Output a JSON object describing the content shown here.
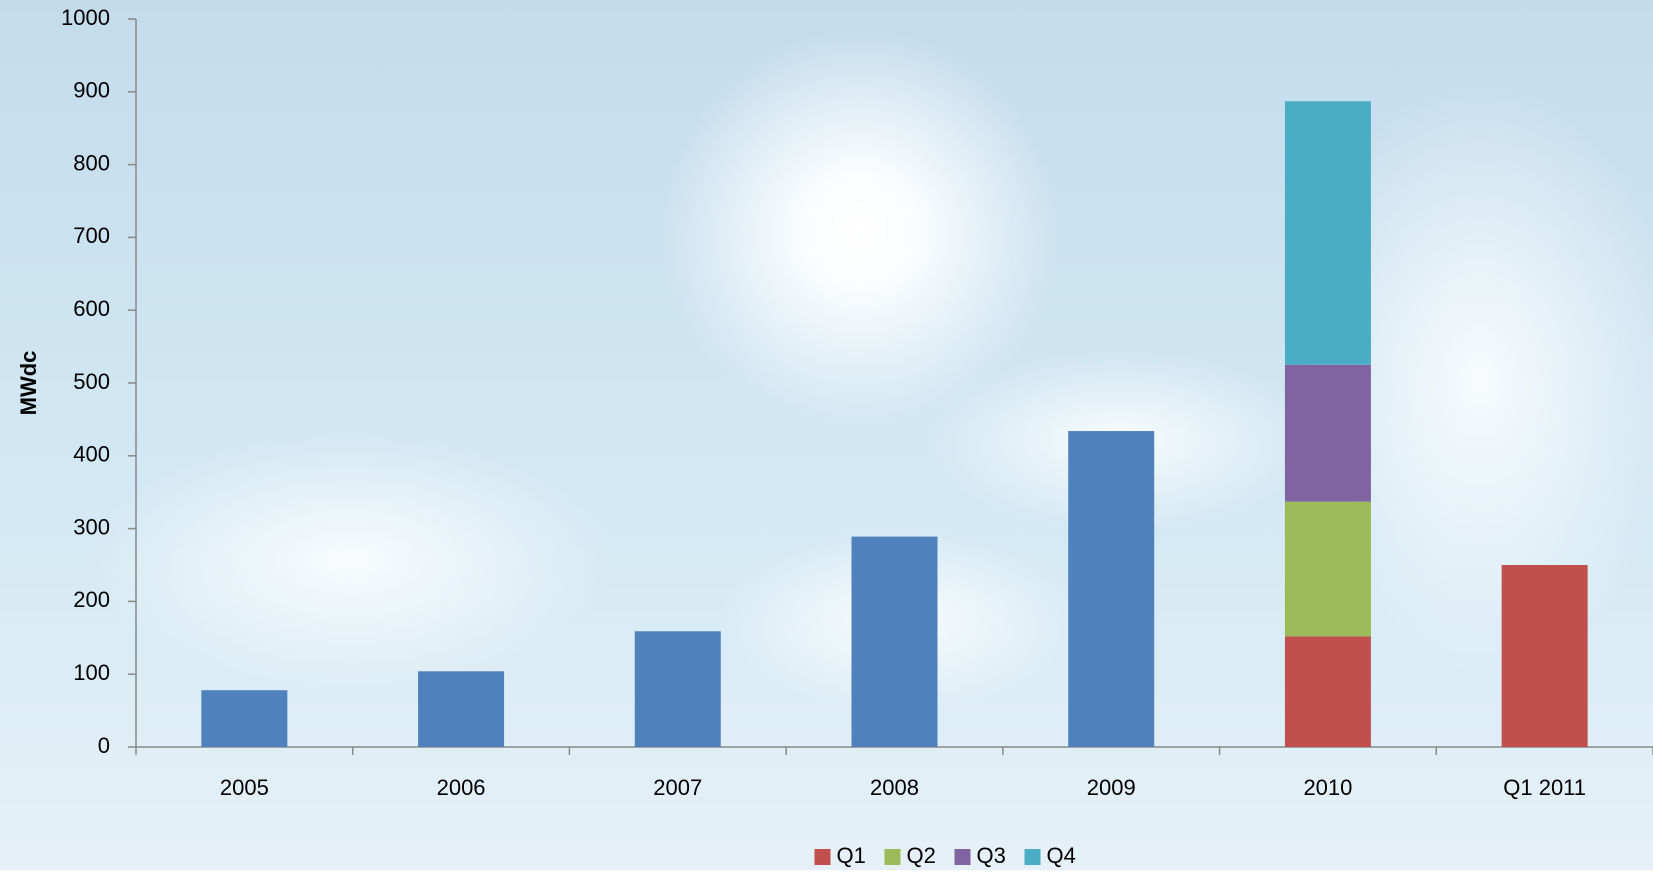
{
  "chart_data": {
    "type": "bar",
    "stacked": true,
    "y_label": "MWdc",
    "categories": [
      "2005",
      "2006",
      "2007",
      "2008",
      "2009",
      "2010",
      "Q1 2011"
    ],
    "series": [
      {
        "color": "#4f81bd",
        "values": [
          78,
          104,
          159,
          289,
          434,
          null,
          null
        ]
      },
      {
        "name": "Q1",
        "color": "#c0504d",
        "values": [
          null,
          null,
          null,
          null,
          null,
          152,
          250
        ]
      },
      {
        "name": "Q2",
        "color": "#9bbb59",
        "values": [
          null,
          null,
          null,
          null,
          null,
          185,
          null
        ]
      },
      {
        "name": "Q3",
        "color": "#8064a2",
        "values": [
          null,
          null,
          null,
          null,
          null,
          188,
          null
        ]
      },
      {
        "name": "Q4",
        "color": "#4bacc6",
        "values": [
          null,
          null,
          null,
          null,
          null,
          362,
          null
        ]
      }
    ],
    "ylim": [
      0,
      1000
    ],
    "yticks": [
      0,
      100,
      200,
      300,
      400,
      500,
      600,
      700,
      800,
      900,
      1000
    ],
    "legend": "bottom"
  }
}
